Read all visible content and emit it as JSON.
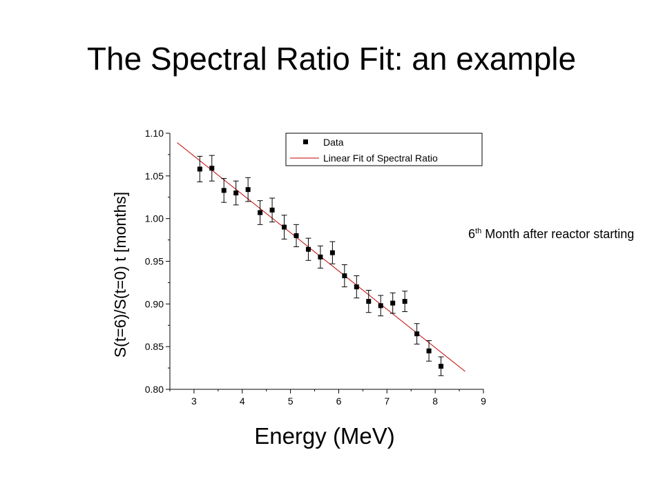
{
  "slide": {
    "title": "The Spectral Ratio Fit: an example",
    "note_superscript_base": "6",
    "note_superscript": "th",
    "note_rest": " Month after reactor starting"
  },
  "chart_data": {
    "type": "scatter",
    "xlabel": "Energy (MeV)",
    "ylabel": "S(t=6)/S(t=0)  t [months]",
    "xlim": [
      2.5,
      9
    ],
    "ylim": [
      0.8,
      1.1
    ],
    "x_ticks": [
      "3",
      "4",
      "5",
      "6",
      "7",
      "8",
      "9"
    ],
    "y_ticks": [
      "0.80",
      "0.85",
      "0.90",
      "0.95",
      "1.00",
      "1.05",
      "1.10"
    ],
    "grid": false,
    "legend_position": "top-right",
    "series": [
      {
        "name": "Data",
        "kind": "points_with_error_bars",
        "color": "#000000",
        "points": [
          {
            "x": 3.12,
            "y": 1.058,
            "err": 0.015
          },
          {
            "x": 3.37,
            "y": 1.059,
            "err": 0.015
          },
          {
            "x": 3.62,
            "y": 1.033,
            "err": 0.014
          },
          {
            "x": 3.87,
            "y": 1.03,
            "err": 0.014
          },
          {
            "x": 4.12,
            "y": 1.034,
            "err": 0.014
          },
          {
            "x": 4.37,
            "y": 1.007,
            "err": 0.014
          },
          {
            "x": 4.62,
            "y": 1.01,
            "err": 0.014
          },
          {
            "x": 4.87,
            "y": 0.99,
            "err": 0.014
          },
          {
            "x": 5.12,
            "y": 0.98,
            "err": 0.013
          },
          {
            "x": 5.37,
            "y": 0.964,
            "err": 0.013
          },
          {
            "x": 5.62,
            "y": 0.955,
            "err": 0.013
          },
          {
            "x": 5.87,
            "y": 0.96,
            "err": 0.013
          },
          {
            "x": 6.12,
            "y": 0.933,
            "err": 0.013
          },
          {
            "x": 6.37,
            "y": 0.92,
            "err": 0.013
          },
          {
            "x": 6.62,
            "y": 0.903,
            "err": 0.013
          },
          {
            "x": 6.87,
            "y": 0.898,
            "err": 0.012
          },
          {
            "x": 7.12,
            "y": 0.901,
            "err": 0.012
          },
          {
            "x": 7.37,
            "y": 0.903,
            "err": 0.012
          },
          {
            "x": 7.62,
            "y": 0.865,
            "err": 0.012
          },
          {
            "x": 7.87,
            "y": 0.845,
            "err": 0.012
          },
          {
            "x": 8.12,
            "y": 0.827,
            "err": 0.011
          }
        ]
      },
      {
        "name": "Linear Fit of Spectral Ratio",
        "kind": "line",
        "color": "#c00000",
        "x": [
          2.65,
          8.62
        ],
        "y": [
          1.089,
          0.821
        ]
      }
    ]
  }
}
